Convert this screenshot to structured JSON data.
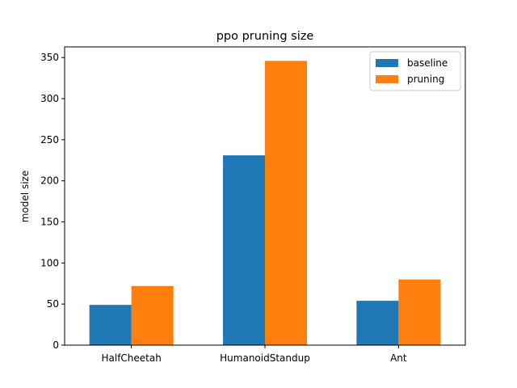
{
  "chart_data": {
    "type": "bar",
    "title": "ppo pruning size",
    "xlabel": "",
    "ylabel": "model size",
    "categories": [
      "HalfCheetah",
      "HumanoidStandup",
      "Ant"
    ],
    "series": [
      {
        "name": "baseline",
        "values": [
          49,
          231,
          54
        ],
        "color": "#1f77b4"
      },
      {
        "name": "pruning",
        "values": [
          72,
          346,
          80
        ],
        "color": "#ff7f0e"
      }
    ],
    "ylim": [
      0,
      363
    ],
    "yticks": [
      0,
      50,
      100,
      150,
      200,
      250,
      300,
      350
    ],
    "grid": false,
    "legend": "top-right"
  }
}
